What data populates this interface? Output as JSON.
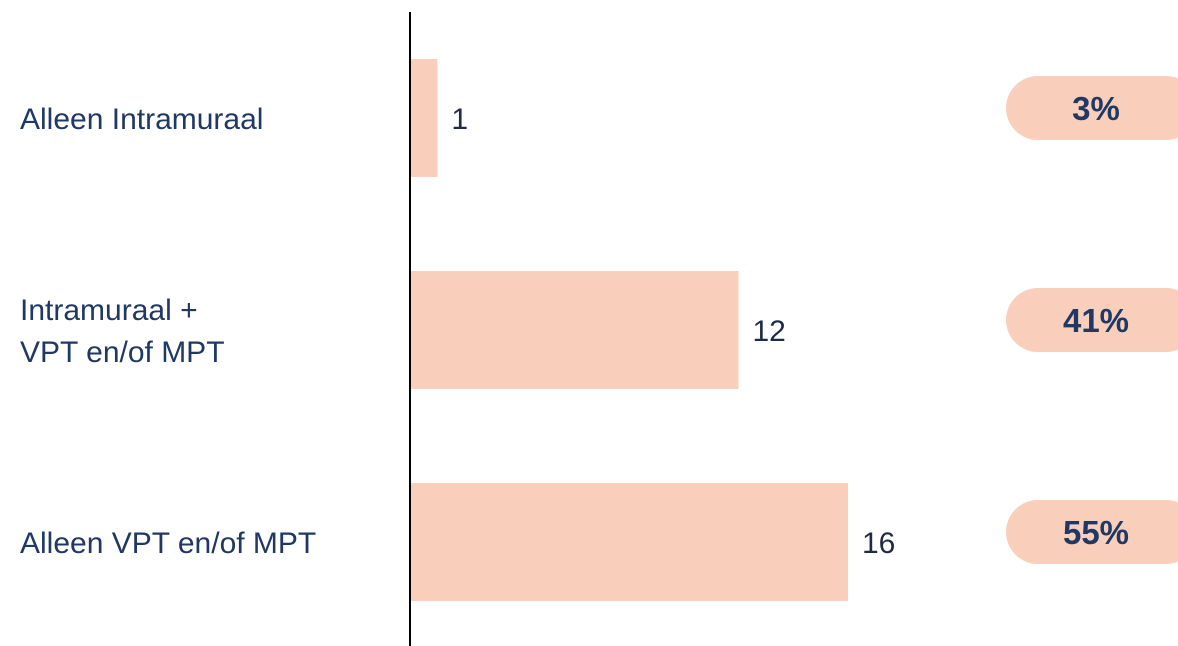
{
  "colors": {
    "bar": "#f9cfbb",
    "badge": "#f9cfbb",
    "axis": "#000000",
    "label_text": "#1f3864"
  },
  "chart_data": {
    "type": "bar",
    "orientation": "horizontal",
    "categories": [
      [
        "Alleen Intramuraal"
      ],
      [
        "Intramuraal +",
        "VPT en/of MPT"
      ],
      [
        "Alleen VPT en/of MPT"
      ]
    ],
    "values": [
      1,
      12,
      16
    ],
    "data_labels": [
      "1",
      "12",
      "16"
    ],
    "percentages": [
      "3%",
      "41%",
      "55%"
    ],
    "xlim": [
      0,
      16
    ],
    "grid": false,
    "legend": "none"
  }
}
